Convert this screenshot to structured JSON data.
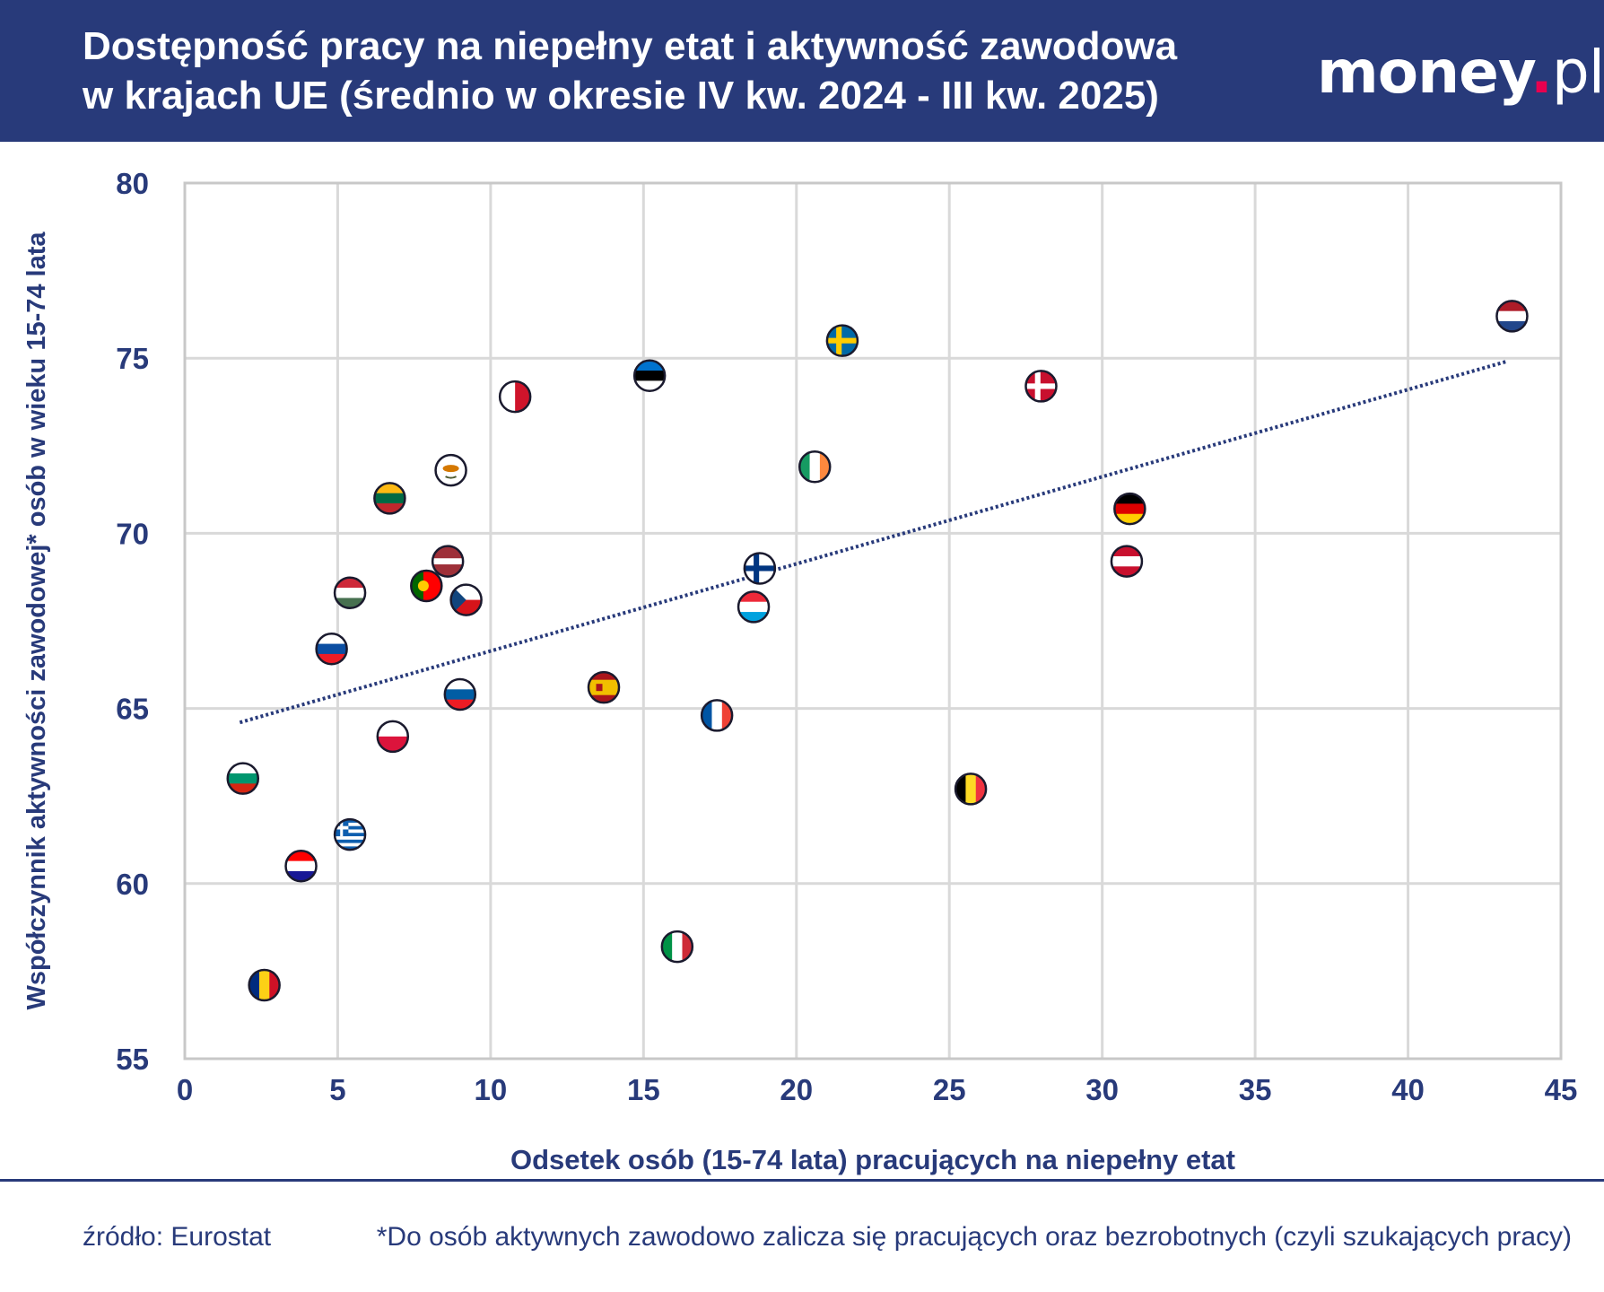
{
  "header": {
    "title_line1": "Dostępność pracy na niepełny etat i aktywność zawodowa",
    "title_line2": "w krajach UE (średnio w okresie IV kw. 2024 - III kw. 2025)",
    "logo_main": "money",
    "logo_dot": ".",
    "logo_suffix": "pl"
  },
  "colors": {
    "navy": "#283a7a",
    "grid": "#d9d9d9",
    "accent": "#e8004f"
  },
  "chart_data": {
    "type": "scatter",
    "title": "Dostępność pracy na niepełny etat i aktywność zawodowa w krajach UE (średnio w okresie IV kw. 2024 - III kw. 2025)",
    "xlabel": "Odsetek osób (15-74 lata) pracujących na niepełny etat",
    "ylabel": "Współczynnik aktywności zawodowej* osób w wieku 15-74 lata",
    "xlim": [
      0,
      45
    ],
    "ylim": [
      55,
      80
    ],
    "xticks": [
      0,
      5,
      10,
      15,
      20,
      25,
      30,
      35,
      40,
      45
    ],
    "yticks": [
      55,
      60,
      65,
      70,
      75,
      80
    ],
    "grid": true,
    "trendline": {
      "x0": 1.8,
      "y0": 64.6,
      "x1": 43.2,
      "y1": 74.9,
      "style": "dotted"
    },
    "points": [
      {
        "country": "NL",
        "flag": "netherlands-flag",
        "x": 43.4,
        "y": 76.2
      },
      {
        "country": "SE",
        "flag": "sweden-flag",
        "x": 21.5,
        "y": 75.5
      },
      {
        "country": "EE",
        "flag": "estonia-flag",
        "x": 15.2,
        "y": 74.5
      },
      {
        "country": "DK",
        "flag": "denmark-flag",
        "x": 28.0,
        "y": 74.2
      },
      {
        "country": "MT",
        "flag": "malta-flag",
        "x": 10.8,
        "y": 73.9
      },
      {
        "country": "IE",
        "flag": "ireland-flag",
        "x": 20.6,
        "y": 71.9
      },
      {
        "country": "CY",
        "flag": "cyprus-flag",
        "x": 8.7,
        "y": 71.8
      },
      {
        "country": "LT",
        "flag": "lithuania-flag",
        "x": 6.7,
        "y": 71.0
      },
      {
        "country": "DE",
        "flag": "germany-flag",
        "x": 30.9,
        "y": 70.7
      },
      {
        "country": "AT",
        "flag": "austria-flag",
        "x": 30.8,
        "y": 69.2
      },
      {
        "country": "LV",
        "flag": "latvia-flag",
        "x": 8.6,
        "y": 69.2
      },
      {
        "country": "FI",
        "flag": "finland-flag",
        "x": 18.8,
        "y": 69.0
      },
      {
        "country": "PT",
        "flag": "portugal-flag",
        "x": 7.9,
        "y": 68.5
      },
      {
        "country": "HU",
        "flag": "hungary-flag",
        "x": 5.4,
        "y": 68.3
      },
      {
        "country": "CZ",
        "flag": "czechia-flag",
        "x": 9.2,
        "y": 68.1
      },
      {
        "country": "LU",
        "flag": "luxembourg-flag",
        "x": 18.6,
        "y": 67.9
      },
      {
        "country": "SK",
        "flag": "slovakia-flag",
        "x": 4.8,
        "y": 66.7
      },
      {
        "country": "ES",
        "flag": "spain-flag",
        "x": 13.7,
        "y": 65.6
      },
      {
        "country": "SI",
        "flag": "slovenia-flag",
        "x": 9.0,
        "y": 65.4
      },
      {
        "country": "FR",
        "flag": "france-flag",
        "x": 17.4,
        "y": 64.8
      },
      {
        "country": "PL",
        "flag": "poland-flag",
        "x": 6.8,
        "y": 64.2
      },
      {
        "country": "BG",
        "flag": "bulgaria-flag",
        "x": 1.9,
        "y": 63.0
      },
      {
        "country": "BE",
        "flag": "belgium-flag",
        "x": 25.7,
        "y": 62.7
      },
      {
        "country": "GR",
        "flag": "greece-flag",
        "x": 5.4,
        "y": 61.4
      },
      {
        "country": "HR",
        "flag": "croatia-flag",
        "x": 3.8,
        "y": 60.5
      },
      {
        "country": "IT",
        "flag": "italy-flag",
        "x": 16.1,
        "y": 58.2
      },
      {
        "country": "RO",
        "flag": "romania-flag",
        "x": 2.6,
        "y": 57.1
      }
    ]
  },
  "footer": {
    "source": "źródło: Eurostat",
    "note": "*Do osób aktywnych zawodowo zalicza się pracujących oraz bezrobotnych (czyli szukających pracy)"
  }
}
